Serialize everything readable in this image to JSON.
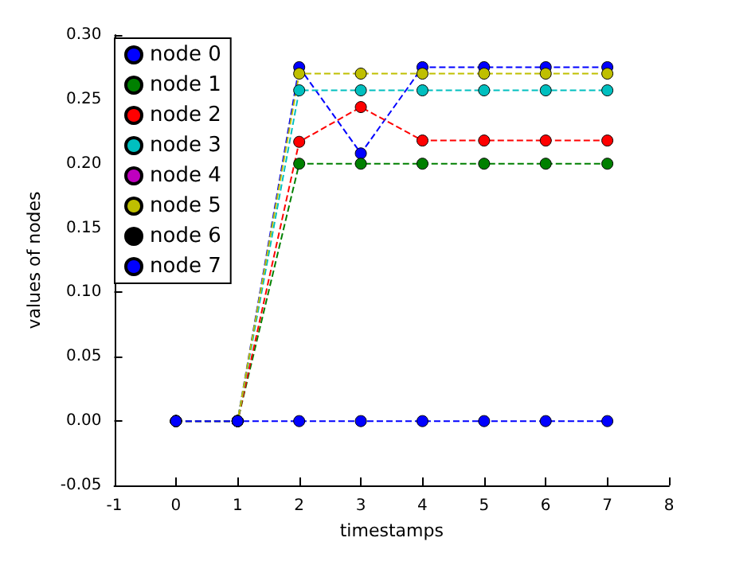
{
  "chart_data": {
    "type": "line",
    "xlabel": "timestamps",
    "ylabel": "values of nodes",
    "x": [
      0,
      1,
      2,
      3,
      4,
      5,
      6,
      7
    ],
    "xlim": [
      -1,
      8
    ],
    "xticks": [
      -1,
      0,
      1,
      2,
      3,
      4,
      5,
      6,
      7,
      8
    ],
    "ylim": [
      -0.05,
      0.3
    ],
    "yticks": [
      {
        "value": -0.05,
        "label": "-0.05"
      },
      {
        "value": 0,
        "label": "0.00"
      },
      {
        "value": 0.05,
        "label": "0.05"
      },
      {
        "value": 0.1,
        "label": "0.10"
      },
      {
        "value": 0.15,
        "label": "0.15"
      },
      {
        "value": 0.2,
        "label": "0.20"
      },
      {
        "value": 0.25,
        "label": "0.25"
      },
      {
        "value": 0.3,
        "label": "0.30"
      }
    ],
    "legend": "top left",
    "grid": false,
    "marker": "circle",
    "line_style": "dashed",
    "series": [
      {
        "name": "node 0",
        "color": "#0000ff",
        "values": [
          0,
          0,
          0.275,
          0.208,
          0.275,
          0.275,
          0.275,
          0.275
        ]
      },
      {
        "name": "node 1",
        "color": "#008000",
        "values": [
          0,
          0,
          0.2,
          0.2,
          0.2,
          0.2,
          0.2,
          0.2
        ]
      },
      {
        "name": "node 2",
        "color": "#ff0000",
        "values": [
          0,
          0,
          0.217,
          0.244,
          0.218,
          0.218,
          0.218,
          0.218
        ]
      },
      {
        "name": "node 3",
        "color": "#00bfbf",
        "values": [
          0,
          0,
          0.257,
          0.257,
          0.257,
          0.257,
          0.257,
          0.257
        ]
      },
      {
        "name": "node 4",
        "color": "#bf00bf",
        "values": [
          null,
          null,
          null,
          null,
          null,
          null,
          null,
          null
        ]
      },
      {
        "name": "node 5",
        "color": "#bfbf00",
        "values": [
          0,
          0,
          0.27,
          0.27,
          0.27,
          0.27,
          0.27,
          0.27
        ]
      },
      {
        "name": "node 6",
        "color": "#000000",
        "values": [
          null,
          null,
          null,
          null,
          null,
          null,
          null,
          null
        ]
      },
      {
        "name": "node 7",
        "color": "#0000ff",
        "values": [
          0,
          0,
          0,
          0,
          0,
          0,
          0,
          0
        ]
      }
    ]
  }
}
